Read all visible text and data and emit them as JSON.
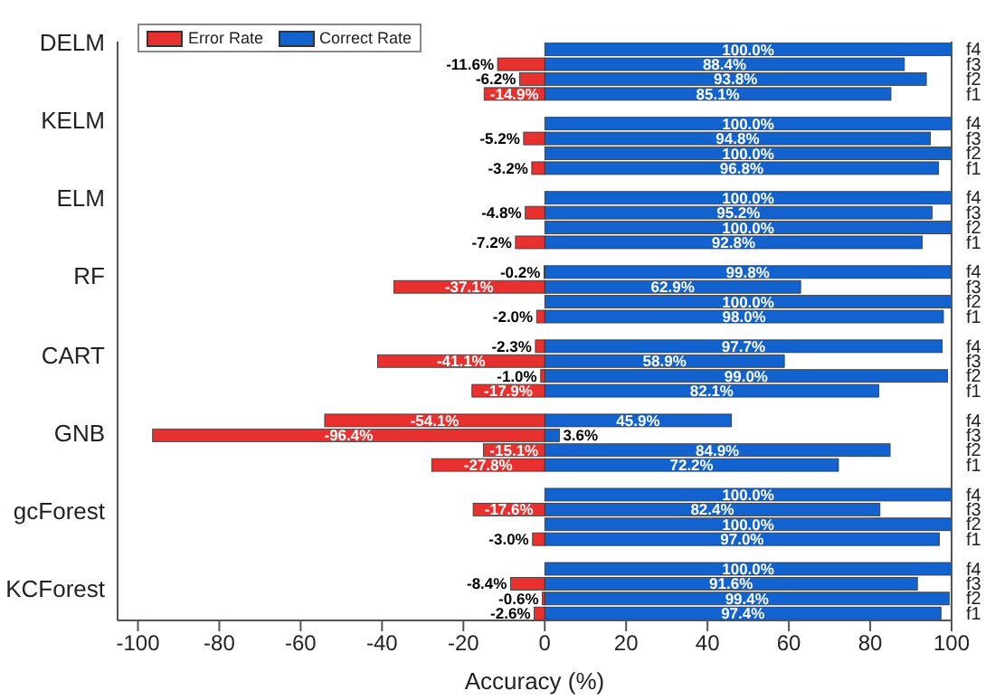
{
  "chart_data": {
    "type": "bar",
    "orientation": "horizontal",
    "stacked": true,
    "xlabel": "Accuracy (%)",
    "categories": [
      "f4",
      "f3",
      "f2",
      "f1",
      null,
      "f4",
      "f3",
      "f2",
      "f1",
      null,
      "f4",
      "f3",
      "f2",
      "f1",
      null,
      "f4",
      "f3",
      "f2",
      "f1",
      null,
      "f4",
      "f3",
      "f2",
      "f1",
      null,
      "f4",
      "f3",
      "f2",
      "f1",
      null,
      "f4",
      "f3",
      "f2",
      "f1",
      null,
      "f4",
      "f3",
      "f2",
      "f1"
    ],
    "annotations": [
      "DELM",
      "KELM",
      "ELM",
      "RF",
      "CART",
      "GNB",
      "gcForest",
      "KCForest"
    ],
    "series": [
      {
        "name": "Error Rate",
        "color": "#e8302f",
        "values": [
          null,
          -11.6,
          -6.2,
          -14.9,
          null,
          null,
          -5.2,
          null,
          -3.2,
          null,
          null,
          -4.8,
          null,
          -7.2,
          null,
          -0.2,
          -37.1,
          null,
          -2.0,
          null,
          -2.3,
          -41.1,
          -1.0,
          -17.9,
          null,
          -54.1,
          -96.4,
          -15.1,
          -27.8,
          null,
          null,
          -17.6,
          null,
          -3.0,
          null,
          null,
          -8.4,
          -0.6,
          -2.6
        ],
        "value_labels": [
          null,
          "-11.6%",
          "-6.2%",
          "-14.9%",
          null,
          null,
          "-5.2%",
          null,
          "-3.2%",
          null,
          null,
          "-4.8%",
          null,
          "-7.2%",
          null,
          "-0.2%",
          "-37.1%",
          null,
          "-2.0%",
          null,
          "-2.3%",
          "-41.1%",
          "-1.0%",
          "-17.9%",
          null,
          "-54.1%",
          "-96.4%",
          "-15.1%",
          "-27.8%",
          null,
          null,
          "-17.6%",
          null,
          "-3.0%",
          null,
          null,
          "-8.4%",
          "-0.6%",
          "-2.6%"
        ]
      },
      {
        "name": "Correct Rate",
        "color": "#1262cf",
        "values": [
          100,
          88.4,
          93.8,
          85.1,
          null,
          100,
          94.8,
          100,
          96.8,
          null,
          100,
          95.2,
          100,
          92.8,
          null,
          99.8,
          62.9,
          100,
          98.0,
          null,
          97.7,
          58.9,
          99.0,
          82.1,
          null,
          45.9,
          3.6,
          84.9,
          72.2,
          null,
          100,
          82.4,
          100,
          97.0,
          null,
          100,
          91.6,
          99.4,
          97.4
        ],
        "value_labels": [
          "100.0%",
          "88.4%",
          "93.8%",
          "85.1%",
          null,
          "100.0%",
          "94.8%",
          "100.0%",
          "96.8%",
          null,
          "100.0%",
          "95.2%",
          "100.0%",
          "92.8%",
          null,
          "99.8%",
          "62.9%",
          "100.0%",
          "98.0%",
          null,
          "97.7%",
          "58.9%",
          "99.0%",
          "82.1%",
          null,
          "45.9%",
          "3.6%",
          "84.9%",
          "72.2%",
          null,
          "100.0%",
          "82.4%",
          "100.0%",
          "97.0%",
          null,
          "100.0%",
          "91.6%",
          "99.4%",
          "97.4%"
        ]
      }
    ],
    "xlim": [
      -105,
      100
    ],
    "xticks": [
      -100,
      -80,
      -60,
      -40,
      -20,
      0,
      20,
      40,
      60,
      80,
      100
    ],
    "legend": "top left"
  }
}
